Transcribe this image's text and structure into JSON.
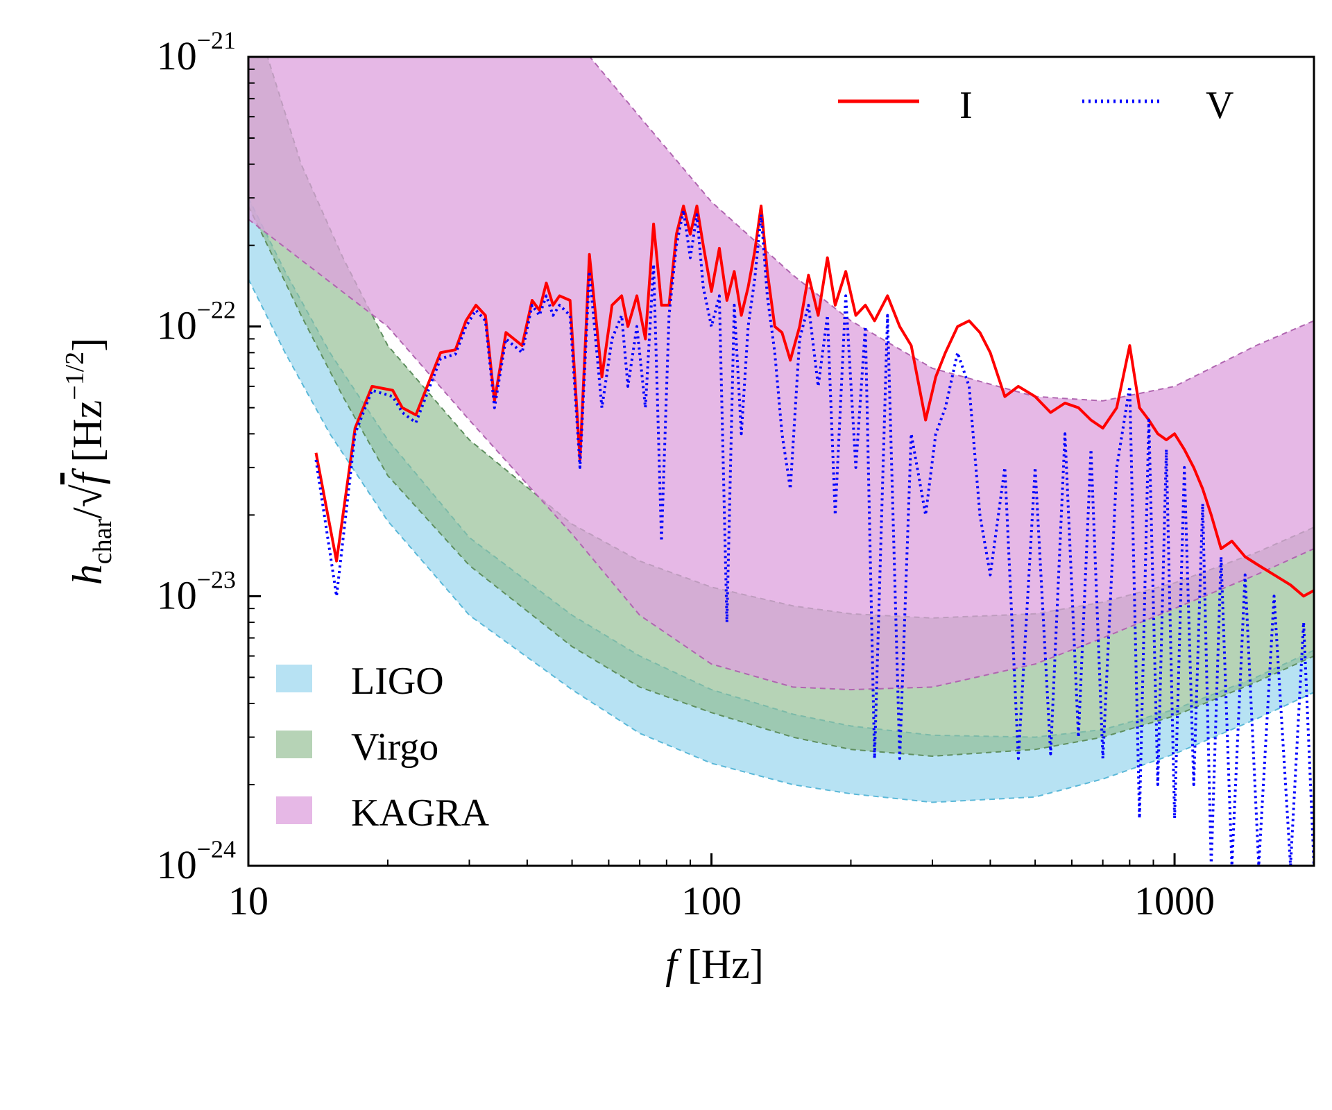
{
  "chart_data": {
    "type": "line",
    "xscale": "log",
    "yscale": "log",
    "xlim": [
      10,
      2000
    ],
    "ylim": [
      1e-24,
      1e-21
    ],
    "x_ticks": [
      {
        "value": 10,
        "label": "10"
      },
      {
        "value": 100,
        "label": "100"
      },
      {
        "value": 1000,
        "label": "1000"
      }
    ],
    "y_ticks": [
      {
        "value": 1e-21,
        "base": "10",
        "exp": "−21"
      },
      {
        "value": 1e-22,
        "base": "10",
        "exp": "−22"
      },
      {
        "value": 1e-23,
        "base": "10",
        "exp": "−23"
      },
      {
        "value": 1e-24,
        "base": "10",
        "exp": "−24"
      }
    ],
    "xlabel": "f [Hz]",
    "ylabel": "h_char/√f [Hz^−1/2]",
    "grid": false,
    "legend_lines": {
      "placement": "top-right",
      "entries": [
        {
          "label": "I",
          "color": "#ff0000",
          "style": "solid"
        },
        {
          "label": "V",
          "color": "#0000ff",
          "style": "dotted"
        }
      ]
    },
    "legend_bands": {
      "placement": "bottom-left",
      "entries": [
        {
          "label": "LIGO",
          "color": "#87ceeb"
        },
        {
          "label": "Virgo",
          "color": "#8fbc8f"
        },
        {
          "label": "KAGRA",
          "color": "#dda0dd"
        }
      ]
    },
    "bands": [
      {
        "name": "LIGO",
        "fill": "#87ceeb",
        "edge": "#5bb8d8",
        "opacity": 0.6,
        "upper": [
          [
            10,
            3e-22
          ],
          [
            12,
            1.6e-22
          ],
          [
            15,
            8e-23
          ],
          [
            20,
            3.8e-23
          ],
          [
            30,
            1.65e-23
          ],
          [
            50,
            8.5e-24
          ],
          [
            70,
            6e-24
          ],
          [
            100,
            4.5e-24
          ],
          [
            150,
            3.65e-24
          ],
          [
            200,
            3.3e-24
          ],
          [
            300,
            3.05e-24
          ],
          [
            500,
            3e-24
          ],
          [
            700,
            3.2e-24
          ],
          [
            1000,
            3.8e-24
          ],
          [
            1500,
            5e-24
          ],
          [
            2000,
            6.3e-24
          ]
        ],
        "lower": [
          [
            10,
            1.5e-22
          ],
          [
            12,
            8e-23
          ],
          [
            15,
            4e-23
          ],
          [
            20,
            1.9e-23
          ],
          [
            30,
            8.5e-24
          ],
          [
            50,
            4.5e-24
          ],
          [
            70,
            3.1e-24
          ],
          [
            100,
            2.4e-24
          ],
          [
            150,
            2e-24
          ],
          [
            200,
            1.85e-24
          ],
          [
            300,
            1.72e-24
          ],
          [
            500,
            1.8e-24
          ],
          [
            700,
            2.1e-24
          ],
          [
            1000,
            2.6e-24
          ],
          [
            1500,
            3.5e-24
          ],
          [
            2000,
            4.4e-24
          ]
        ]
      },
      {
        "name": "Virgo",
        "fill": "#8fbc8f",
        "edge": "#5f8f5f",
        "opacity": 0.65,
        "upper": [
          [
            10,
            1.5e-21
          ],
          [
            11,
            1e-21
          ],
          [
            13,
            4e-22
          ],
          [
            16,
            1.8e-22
          ],
          [
            20,
            8.5e-23
          ],
          [
            30,
            3.8e-23
          ],
          [
            50,
            1.85e-23
          ],
          [
            70,
            1.35e-23
          ],
          [
            100,
            1.08e-23
          ],
          [
            150,
            9.2e-24
          ],
          [
            200,
            8.6e-24
          ],
          [
            300,
            8.3e-24
          ],
          [
            500,
            8.6e-24
          ],
          [
            700,
            9.5e-24
          ],
          [
            1000,
            1.12e-23
          ],
          [
            1500,
            1.45e-23
          ],
          [
            2000,
            1.8e-23
          ]
        ],
        "lower": [
          [
            10,
            2.8e-22
          ],
          [
            11,
            2e-22
          ],
          [
            13,
            1.1e-22
          ],
          [
            16,
            5.5e-23
          ],
          [
            20,
            2.8e-23
          ],
          [
            30,
            1.3e-23
          ],
          [
            50,
            6.5e-24
          ],
          [
            70,
            4.6e-24
          ],
          [
            100,
            3.7e-24
          ],
          [
            150,
            3e-24
          ],
          [
            200,
            2.7e-24
          ],
          [
            300,
            2.55e-24
          ],
          [
            500,
            2.7e-24
          ],
          [
            700,
            3e-24
          ],
          [
            1000,
            3.6e-24
          ],
          [
            1500,
            4.8e-24
          ],
          [
            2000,
            6e-24
          ]
        ]
      },
      {
        "name": "KAGRA",
        "fill": "#dda0dd",
        "edge": "#b066b0",
        "opacity": 0.75,
        "upper": [
          [
            10,
            2e-21
          ],
          [
            20,
            2e-21
          ],
          [
            50,
            1.2e-21
          ],
          [
            70,
            6e-22
          ],
          [
            100,
            2.9e-22
          ],
          [
            150,
            1.55e-22
          ],
          [
            200,
            1.05e-22
          ],
          [
            300,
            7e-23
          ],
          [
            500,
            5.5e-23
          ],
          [
            700,
            5.3e-23
          ],
          [
            1000,
            6e-23
          ],
          [
            1500,
            8.5e-23
          ],
          [
            2000,
            1.05e-22
          ]
        ],
        "lower": [
          [
            10,
            2.5e-22
          ],
          [
            20,
            1e-22
          ],
          [
            30,
            4.5e-23
          ],
          [
            50,
            1.7e-23
          ],
          [
            70,
            8.5e-24
          ],
          [
            100,
            5.6e-24
          ],
          [
            150,
            4.6e-24
          ],
          [
            200,
            4.5e-24
          ],
          [
            300,
            4.6e-24
          ],
          [
            500,
            5.6e-24
          ],
          [
            700,
            7e-24
          ],
          [
            1000,
            9e-24
          ],
          [
            1500,
            1.2e-23
          ],
          [
            2000,
            1.5e-23
          ]
        ]
      }
    ],
    "series": [
      {
        "name": "I",
        "color": "#ff0000",
        "style": "solid",
        "points": [
          [
            14,
            3.4e-23
          ],
          [
            15.5,
            1.35e-23
          ],
          [
            17,
            4.2e-23
          ],
          [
            18.5,
            6e-23
          ],
          [
            20.5,
            5.8e-23
          ],
          [
            21.5,
            5e-23
          ],
          [
            23,
            4.7e-23
          ],
          [
            26,
            8e-23
          ],
          [
            28,
            8.2e-23
          ],
          [
            29.5,
            1.05e-22
          ],
          [
            31,
            1.2e-22
          ],
          [
            32.5,
            1.1e-22
          ],
          [
            34,
            5.3e-23
          ],
          [
            36,
            9.5e-23
          ],
          [
            39,
            8.5e-23
          ],
          [
            41,
            1.25e-22
          ],
          [
            42.5,
            1.15e-22
          ],
          [
            44,
            1.45e-22
          ],
          [
            45.5,
            1.2e-22
          ],
          [
            47,
            1.3e-22
          ],
          [
            49.5,
            1.25e-22
          ],
          [
            52,
            3.2e-23
          ],
          [
            54.5,
            1.85e-22
          ],
          [
            58,
            6.5e-23
          ],
          [
            61,
            1.2e-22
          ],
          [
            64,
            1.3e-22
          ],
          [
            66,
            1e-22
          ],
          [
            69,
            1.3e-22
          ],
          [
            72,
            9e-23
          ],
          [
            75,
            2.4e-22
          ],
          [
            78,
            1.2e-22
          ],
          [
            81,
            1.2e-22
          ],
          [
            84,
            2.2e-22
          ],
          [
            87,
            2.8e-22
          ],
          [
            90,
            2.2e-22
          ],
          [
            93,
            2.8e-22
          ],
          [
            96,
            2e-22
          ],
          [
            100,
            1.35e-22
          ],
          [
            104,
            1.95e-22
          ],
          [
            108,
            1.25e-22
          ],
          [
            112,
            1.6e-22
          ],
          [
            116,
            1.1e-22
          ],
          [
            120,
            1.4e-22
          ],
          [
            124,
            1.9e-22
          ],
          [
            128,
            2.8e-22
          ],
          [
            132,
            1.6e-22
          ],
          [
            137,
            1e-22
          ],
          [
            142,
            9.5e-23
          ],
          [
            148,
            7.5e-23
          ],
          [
            155,
            1e-22
          ],
          [
            162,
            1.55e-22
          ],
          [
            170,
            1.1e-22
          ],
          [
            178,
            1.8e-22
          ],
          [
            185,
            1.2e-22
          ],
          [
            195,
            1.6e-22
          ],
          [
            205,
            1.1e-22
          ],
          [
            215,
            1.2e-22
          ],
          [
            225,
            1.05e-22
          ],
          [
            240,
            1.3e-22
          ],
          [
            255,
            1e-22
          ],
          [
            270,
            8.5e-23
          ],
          [
            290,
            4.5e-23
          ],
          [
            305,
            6.5e-23
          ],
          [
            320,
            8e-23
          ],
          [
            340,
            1e-22
          ],
          [
            360,
            1.05e-22
          ],
          [
            380,
            9.5e-23
          ],
          [
            400,
            8e-23
          ],
          [
            430,
            5.5e-23
          ],
          [
            460,
            6e-23
          ],
          [
            500,
            5.5e-23
          ],
          [
            540,
            4.8e-23
          ],
          [
            580,
            5.2e-23
          ],
          [
            620,
            5e-23
          ],
          [
            660,
            4.5e-23
          ],
          [
            700,
            4.2e-23
          ],
          [
            750,
            5e-23
          ],
          [
            800,
            8.5e-23
          ],
          [
            840,
            5e-23
          ],
          [
            880,
            4.5e-23
          ],
          [
            920,
            4e-23
          ],
          [
            960,
            3.8e-23
          ],
          [
            1000,
            4e-23
          ],
          [
            1050,
            3.5e-23
          ],
          [
            1100,
            3e-23
          ],
          [
            1150,
            2.5e-23
          ],
          [
            1200,
            2e-23
          ],
          [
            1260,
            1.5e-23
          ],
          [
            1330,
            1.6e-23
          ],
          [
            1420,
            1.4e-23
          ],
          [
            1520,
            1.3e-23
          ],
          [
            1640,
            1.2e-23
          ],
          [
            1780,
            1.1e-23
          ],
          [
            1900,
            1e-23
          ],
          [
            2000,
            1.05e-23
          ]
        ]
      },
      {
        "name": "V",
        "color": "#0000ff",
        "style": "dotted",
        "points": [
          [
            14,
            3.2e-23
          ],
          [
            15.5,
            1e-23
          ],
          [
            17,
            4e-23
          ],
          [
            18.5,
            5.8e-23
          ],
          [
            20.5,
            5.5e-23
          ],
          [
            21.5,
            4.8e-23
          ],
          [
            23,
            4.4e-23
          ],
          [
            26,
            7.6e-23
          ],
          [
            28,
            7.9e-23
          ],
          [
            29.5,
            1e-22
          ],
          [
            31,
            1.15e-22
          ],
          [
            32.5,
            1.05e-22
          ],
          [
            34,
            5e-23
          ],
          [
            36,
            9e-23
          ],
          [
            39,
            8e-23
          ],
          [
            41,
            1.2e-22
          ],
          [
            42.5,
            1.1e-22
          ],
          [
            44,
            1.3e-22
          ],
          [
            45.5,
            1.1e-22
          ],
          [
            47,
            1.2e-22
          ],
          [
            49.5,
            1.1e-22
          ],
          [
            52,
            3e-23
          ],
          [
            54.5,
            1.6e-22
          ],
          [
            58,
            5e-23
          ],
          [
            61,
            9e-23
          ],
          [
            64,
            1.1e-22
          ],
          [
            66,
            6e-23
          ],
          [
            69,
            1e-22
          ],
          [
            72,
            5e-23
          ],
          [
            75,
            1.7e-22
          ],
          [
            78,
            1.6e-23
          ],
          [
            81,
            1.1e-22
          ],
          [
            84,
            2e-22
          ],
          [
            87,
            2.7e-22
          ],
          [
            90,
            1.8e-22
          ],
          [
            93,
            2.6e-22
          ],
          [
            96,
            1.4e-22
          ],
          [
            100,
            1e-22
          ],
          [
            104,
            1.3e-22
          ],
          [
            108,
            8e-24
          ],
          [
            112,
            1.2e-22
          ],
          [
            116,
            4e-23
          ],
          [
            120,
            1e-22
          ],
          [
            124,
            1.5e-22
          ],
          [
            128,
            2.6e-22
          ],
          [
            132,
            1.3e-22
          ],
          [
            137,
            8e-23
          ],
          [
            142,
            4e-23
          ],
          [
            148,
            2.5e-23
          ],
          [
            155,
            9e-23
          ],
          [
            162,
            1.2e-22
          ],
          [
            170,
            6e-23
          ],
          [
            178,
            1.1e-22
          ],
          [
            185,
            2e-23
          ],
          [
            195,
            1.3e-22
          ],
          [
            205,
            3e-23
          ],
          [
            215,
            1e-22
          ],
          [
            225,
            2.5e-24
          ],
          [
            240,
            1.1e-22
          ],
          [
            255,
            2.5e-24
          ],
          [
            270,
            4e-23
          ],
          [
            290,
            2e-23
          ],
          [
            305,
            4e-23
          ],
          [
            320,
            5e-23
          ],
          [
            340,
            8e-23
          ],
          [
            360,
            6e-23
          ],
          [
            380,
            2e-23
          ],
          [
            400,
            1.2e-23
          ],
          [
            430,
            3e-23
          ],
          [
            460,
            2.5e-24
          ],
          [
            500,
            3e-23
          ],
          [
            540,
            2.6e-24
          ],
          [
            580,
            4e-23
          ],
          [
            620,
            3e-24
          ],
          [
            660,
            3.5e-23
          ],
          [
            700,
            2.5e-24
          ],
          [
            750,
            3e-23
          ],
          [
            800,
            6e-23
          ],
          [
            840,
            1.5e-24
          ],
          [
            880,
            4.5e-23
          ],
          [
            920,
            2e-24
          ],
          [
            960,
            3.5e-23
          ],
          [
            1000,
            1.5e-24
          ],
          [
            1050,
            3e-23
          ],
          [
            1100,
            2e-24
          ],
          [
            1150,
            2.2e-23
          ],
          [
            1200,
            1e-24
          ],
          [
            1260,
            1.4e-23
          ],
          [
            1330,
            1e-24
          ],
          [
            1420,
            1.2e-23
          ],
          [
            1520,
            1e-24
          ],
          [
            1640,
            1e-23
          ],
          [
            1780,
            1e-24
          ],
          [
            1900,
            8e-24
          ],
          [
            2000,
            1e-24
          ]
        ]
      }
    ]
  }
}
